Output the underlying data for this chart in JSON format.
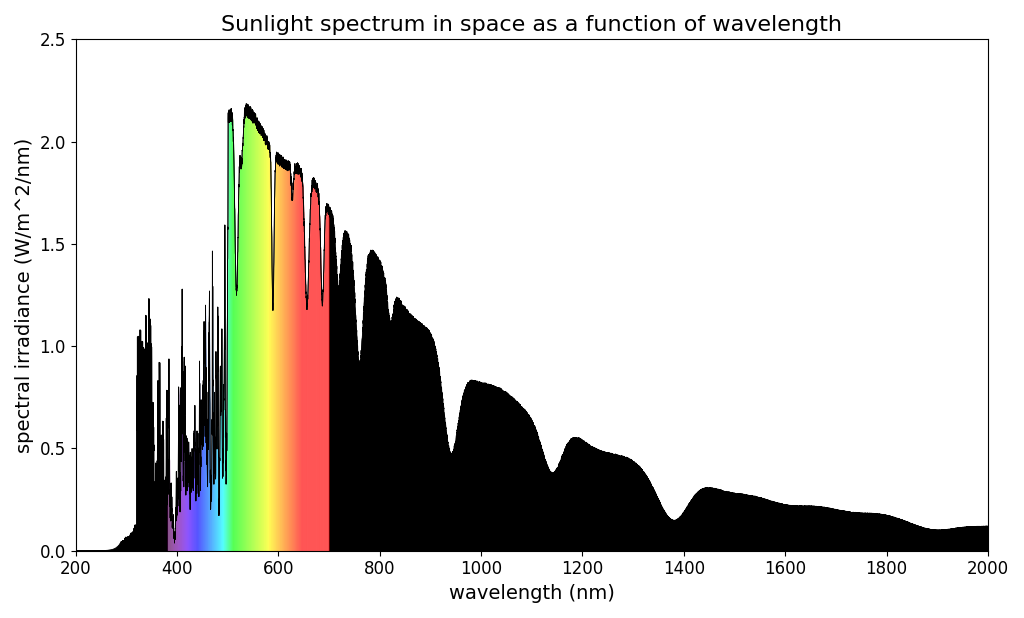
{
  "title": "Sunlight spectrum in space as a function of wavelength",
  "xlabel": "wavelength (nm)",
  "ylabel": "spectral irradiance (W/m^2/nm)",
  "xlim": [
    200,
    2000
  ],
  "ylim": [
    0,
    2.5
  ],
  "xticks": [
    200,
    400,
    600,
    800,
    1000,
    1200,
    1400,
    1600,
    1800,
    2000
  ],
  "yticks": [
    0.0,
    0.5,
    1.0,
    1.5,
    2.0,
    2.5
  ],
  "visible_min": 380,
  "visible_max": 700,
  "background_color": "#ffffff",
  "title_fontsize": 16,
  "label_fontsize": 14,
  "tick_fontsize": 12
}
